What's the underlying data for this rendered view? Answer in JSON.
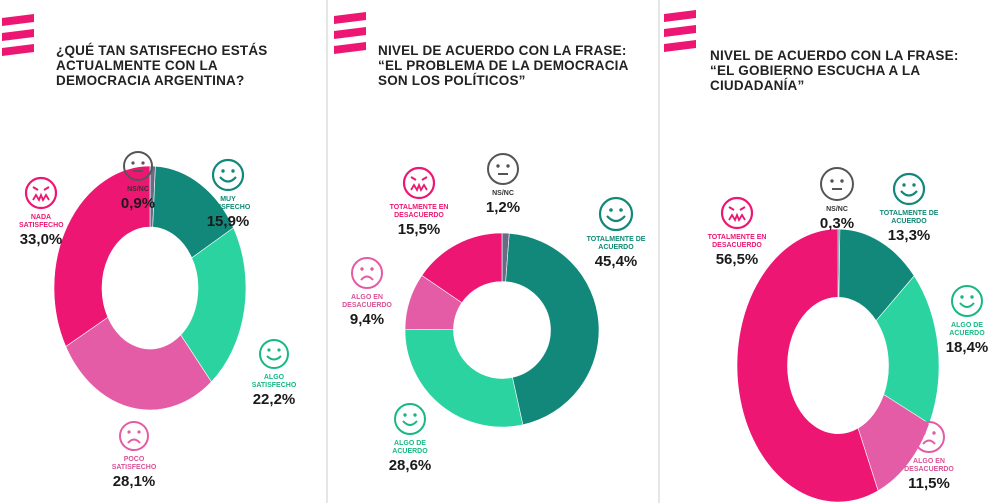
{
  "colors": {
    "brand": "#ee1673",
    "nada": "#ee1673",
    "poco": "#e45ca5",
    "algo_pos": "#2bd3a0",
    "muy": "#11887a",
    "nsnc": "#6b6b88",
    "face_grey": "#555555"
  },
  "icons": [
    "brand-stripes-logo",
    "angry-face-icon",
    "neutral-face-icon",
    "happy-face-icon",
    "smile-face-icon",
    "sad-face-icon"
  ],
  "chart_data": [
    {
      "type": "pie",
      "title": "¿QUÉ TAN SATISFECHO ESTÁS ACTUALMENTE CON LA DEMOCRACIA ARGENTINA?",
      "slices": [
        {
          "name": "NS/NC",
          "value": 0.9,
          "label": "0,9%"
        },
        {
          "name": "MUY SATISFECHO",
          "value": 15.9,
          "label": "15,9%"
        },
        {
          "name": "ALGO SATISFECHO",
          "value": 22.2,
          "label": "22,2%"
        },
        {
          "name": "POCO SATISFECHO",
          "value": 28.1,
          "label": "28,1%"
        },
        {
          "name": "NADA SATISFECHO",
          "value": 33.0,
          "label": "33,0%"
        }
      ]
    },
    {
      "type": "pie",
      "title": "NIVEL DE ACUERDO CON LA FRASE: “EL PROBLEMA DE LA DEMOCRACIA SON LOS POLÍTICOS”",
      "slices": [
        {
          "name": "NS/NC",
          "value": 1.2,
          "label": "1,2%"
        },
        {
          "name": "TOTALMENTE DE ACUERDO",
          "value": 45.4,
          "label": "45,4%"
        },
        {
          "name": "ALGO DE ACUERDO",
          "value": 28.6,
          "label": "28,6%"
        },
        {
          "name": "ALGO EN DESACUERDO",
          "value": 9.4,
          "label": "9,4%"
        },
        {
          "name": "TOTALMENTE EN DESACUERDO",
          "value": 15.5,
          "label": "15,5%"
        }
      ]
    },
    {
      "type": "pie",
      "title": "NIVEL DE ACUERDO CON LA FRASE: “EL GOBIERNO ESCUCHA A LA CIUDADANÍA”",
      "slices": [
        {
          "name": "NS/NC",
          "value": 0.3,
          "label": "0,3%"
        },
        {
          "name": "TOTALMENTE DE ACUERDO",
          "value": 13.3,
          "label": "13,3%"
        },
        {
          "name": "ALGO DE ACUERDO",
          "value": 18.4,
          "label": "18,4%"
        },
        {
          "name": "ALGO EN DESACUERDO",
          "value": 11.5,
          "label": "11,5%"
        },
        {
          "name": "TOTALMENTE EN DESACUERDO",
          "value": 56.5,
          "label": "56,5%"
        }
      ]
    }
  ]
}
